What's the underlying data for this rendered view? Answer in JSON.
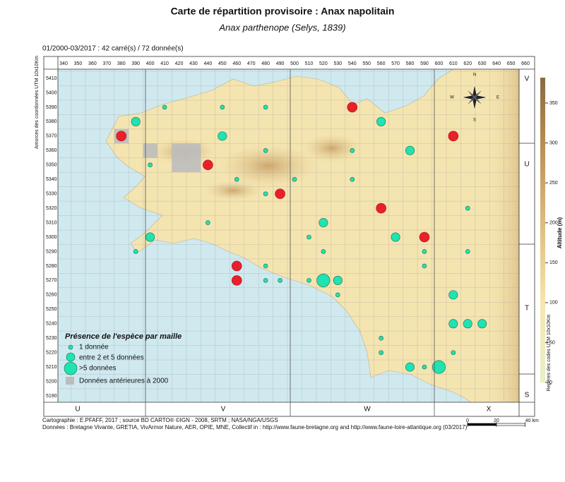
{
  "title": "Carte de répartition provisoire :  Anax napolitain",
  "subtitle": "Anax parthenope (Selys, 1839)",
  "period": "01/2000-03/2017 :  42 carré(s) / 72 donnée(s)",
  "y_axis_label": "Amorces des coordonnées UTM 10x10Km",
  "right_axis_label": "Repères des codes UTM 10x10Km",
  "xticks": [
    340,
    350,
    360,
    370,
    380,
    390,
    400,
    410,
    420,
    430,
    440,
    450,
    460,
    470,
    480,
    490,
    500,
    510,
    520,
    530,
    540,
    550,
    560,
    570,
    580,
    590,
    600,
    610,
    620,
    630,
    640,
    650,
    660
  ],
  "yticks": [
    5190,
    5200,
    5210,
    5220,
    5230,
    5240,
    5250,
    5260,
    5270,
    5280,
    5290,
    5300,
    5310,
    5320,
    5330,
    5340,
    5350,
    5360,
    5370,
    5380,
    5390,
    5400,
    5410
  ],
  "zones_bottom": [
    "U",
    "V",
    "W",
    "X"
  ],
  "zones_right": [
    "V",
    "U",
    "T",
    "S"
  ],
  "compass": [
    "N",
    "E",
    "S",
    "W"
  ],
  "altitude": {
    "label": "Altitude (m)",
    "lim": [
      0,
      350
    ],
    "ticks": [
      0,
      50,
      100,
      150,
      200,
      250,
      300,
      350
    ]
  },
  "legend": {
    "title": "Présence de l'espèce par maille",
    "items": [
      "1 donnée",
      "entre 2 et 5 données",
      ">5 données",
      "Données antérieures à 2000"
    ]
  },
  "old_cells": {
    "x": [
      380,
      400,
      420,
      430,
      420,
      430
    ],
    "y": [
      5370,
      5360,
      5360,
      5360,
      5350,
      5350
    ]
  },
  "points": [
    {
      "color": "#1fe3b0",
      "x": [
        410,
        450,
        480,
        390,
        450,
        560,
        480,
        540,
        580,
        400,
        460,
        500,
        540,
        480,
        620,
        440,
        520,
        400,
        510,
        570,
        390,
        520,
        590,
        620,
        480,
        590,
        480,
        490,
        510,
        520,
        530,
        530,
        610,
        610,
        620,
        630,
        560,
        560,
        610,
        580,
        590,
        600
      ],
      "y": [
        5390,
        5390,
        5390,
        5380,
        5370,
        5380,
        5360,
        5360,
        5360,
        5350,
        5340,
        5340,
        5340,
        5330,
        5320,
        5310,
        5310,
        5300,
        5300,
        5300,
        5290,
        5290,
        5290,
        5290,
        5280,
        5280,
        5270,
        5270,
        5270,
        5270,
        5270,
        5260,
        5260,
        5240,
        5240,
        5240,
        5230,
        5220,
        5220,
        5210,
        5210,
        5210
      ],
      "size": [
        1,
        1,
        1,
        2,
        2,
        2,
        1,
        1,
        2,
        1,
        1,
        1,
        1,
        1,
        1,
        1,
        2,
        2,
        1,
        2,
        1,
        1,
        1,
        1,
        1,
        1,
        1,
        1,
        1,
        3,
        2,
        1,
        2,
        2,
        2,
        2,
        1,
        1,
        1,
        2,
        1,
        3
      ]
    },
    {
      "color": "#e8202a",
      "x": [
        540,
        380,
        610,
        440,
        490,
        560,
        590,
        460,
        460
      ],
      "y": [
        5390,
        5370,
        5370,
        5350,
        5330,
        5320,
        5300,
        5280,
        5270
      ],
      "size": [
        2,
        2,
        2,
        2,
        2,
        2,
        2,
        2,
        2
      ]
    }
  ],
  "scale": {
    "ticks": [
      0,
      20,
      {
        "value": 40,
        "label": "40 km"
      }
    ]
  },
  "footer": [
    "Cartographie : E.PFAFF, 2017 ; source BD CARTO® ©IGN - 2008, SRTM ; NASA/NGA/USGS",
    "Données : Bretagne Vivante, GRETIA, VivArmor Nature, AER, OPIE, MNE, Collectif in : http://www.faune-bretagne.org and http://www.faune-loire-atlantique.org (03/2017)"
  ]
}
